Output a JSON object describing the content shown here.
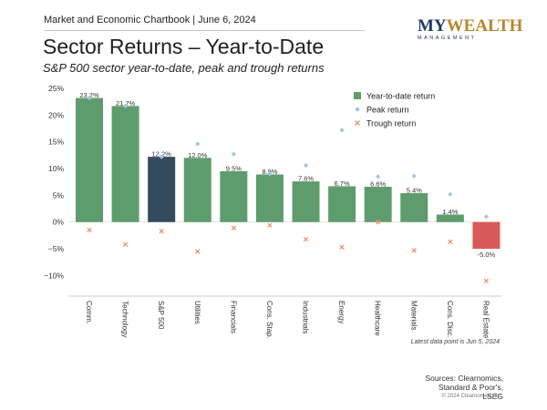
{
  "header": {
    "chartbook": "Market and Economic Chartbook | June 6, 2024"
  },
  "logo": {
    "brand_my": "MY",
    "brand_wealth": "WEALTH",
    "brand_sub": "MANAGEMENT"
  },
  "footer": {
    "note": "Latest data point is Jun 5, 2024",
    "sources_line1": "Sources: Clearnomics,",
    "sources_line2": "Standard & Poor's,",
    "sources_line3": "LSEG",
    "copyright": "© 2024 Clearnomics, Inc."
  },
  "colors": {
    "ytd": "#5e9c6e",
    "sp500": "#344a5e",
    "negative": "#d9595a",
    "peak": "#9ec9e0",
    "trough": "#e8956f"
  },
  "chart_data": {
    "type": "bar",
    "title": "Sector Returns – Year-to-Date",
    "subtitle": "S&P 500 sector year-to-date, peak and trough returns",
    "categories": [
      "Comm.",
      "Technology",
      "S&P 500",
      "Utilities",
      "Financials",
      "Cons. Stap.",
      "Industrials",
      "Energy",
      "Healthcare",
      "Materials",
      "Cons. Disc.",
      "Real Estate"
    ],
    "series": [
      {
        "name": "Year-to-date return",
        "values": [
          23.2,
          21.7,
          12.2,
          12.0,
          9.5,
          8.9,
          7.6,
          6.7,
          6.6,
          5.4,
          1.4,
          -5.0
        ]
      },
      {
        "name": "Peak return",
        "values": [
          23.2,
          21.7,
          12.2,
          14.6,
          12.7,
          9.0,
          10.6,
          17.2,
          8.5,
          8.6,
          5.2,
          1.0
        ]
      },
      {
        "name": "Trough return",
        "values": [
          -1.5,
          -4.2,
          -1.7,
          -5.5,
          -1.1,
          -0.6,
          -3.2,
          -4.7,
          0.0,
          -5.3,
          -3.7,
          -11.0
        ]
      }
    ],
    "data_labels": [
      "23.2%",
      "21.7%",
      "12.2%",
      "12.0%",
      "9.5%",
      "8.9%",
      "7.6%",
      "6.7%",
      "6.6%",
      "5.4%",
      "1.4%",
      "-5.0%"
    ],
    "yticks": [
      "25%",
      "20%",
      "15%",
      "10%",
      "5%",
      "0%",
      "−5%",
      "−10%"
    ],
    "ylim": [
      -13,
      25
    ],
    "highlight_category": "S&P 500",
    "legend_position": "top-right",
    "grid": false
  }
}
